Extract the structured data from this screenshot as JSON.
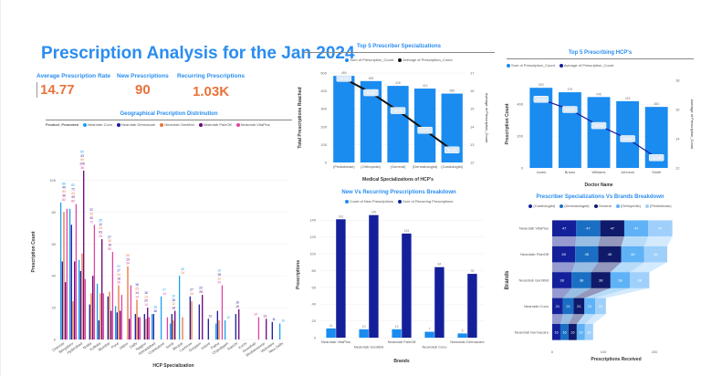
{
  "header": {
    "title": "Prescription Analysis for the Jan 2024"
  },
  "kpis": [
    {
      "label": "Average Prescription Rate",
      "value": "14.77"
    },
    {
      "label": "New Prescriptions",
      "value": "90"
    },
    {
      "label": "Recurring Prescriptions",
      "value": "1.03K"
    }
  ],
  "chart_data": [
    {
      "id": "geo",
      "type": "bar",
      "title": "Geographical Precription Distrinution",
      "legend_title": "Product_Promoted",
      "legend_position": "top-left",
      "xlabel": "HCP Specialization",
      "ylabel": "Prescription Count",
      "ylim": [
        0,
        110
      ],
      "yticks": [
        "0",
        "20",
        "40",
        "60",
        "80",
        "100"
      ],
      "categories": [
        "Chennai",
        "Bengaluru",
        "Hyderabad",
        "Noida",
        "Kolkata",
        "Mumbai",
        "Pune",
        "Jaipur",
        "Delhi",
        "Nagpur",
        "Ahmedabad",
        "Coimbatore",
        "Surat",
        "Bhopal",
        "Lucknow",
        "Gurgaon",
        "Indore",
        "Patna",
        "Chandigarh",
        "Ranchi",
        "Kochi",
        "Guwahati",
        "Bhubaneswar",
        "Vadodara",
        "New Delhi"
      ],
      "series": [
        {
          "name": "Nearotab Cuvo",
          "color": "#1aa0f0",
          "values": [
            86,
            82,
            50,
            null,
            35,
            null,
            21,
            null,
            null,
            null,
            16,
            27,
            10,
            40,
            null,
            null,
            null,
            10,
            12,
            null,
            null,
            null,
            null,
            null,
            10
          ]
        },
        {
          "name": "Nearotab Dermacare",
          "color": "#1a1a9a",
          "values": [
            49,
            72,
            43,
            22,
            12,
            27,
            17,
            null,
            16,
            16,
            16,
            null,
            16,
            null,
            27,
            22,
            13,
            18,
            null,
            16,
            null,
            null,
            null,
            11,
            null
          ]
        },
        {
          "name": "Nearotab Gentibid",
          "color": "#e8743b",
          "values": [
            80,
            24,
            54,
            29,
            29,
            30,
            34,
            46,
            25,
            13,
            null,
            null,
            12,
            14,
            24,
            null,
            null,
            12,
            null,
            null,
            null,
            null,
            null,
            null,
            null
          ]
        },
        {
          "name": "Nearotab PainOff",
          "color": "#6b007b",
          "values": [
            36,
            49,
            106,
            40,
            63,
            18,
            18,
            13,
            14,
            20,
            null,
            null,
            18,
            null,
            null,
            28,
            null,
            null,
            null,
            19,
            null,
            null,
            13,
            null,
            null
          ]
        },
        {
          "name": "Nearotab VitaPlus",
          "color": "#e044a7",
          "values": [
            82,
            85,
            38,
            72,
            29,
            55,
            28,
            34,
            14,
            14,
            null,
            14,
            null,
            null,
            null,
            null,
            null,
            34,
            null,
            null,
            null,
            14,
            null,
            null,
            null
          ]
        }
      ]
    },
    {
      "id": "spec",
      "type": "bar",
      "title": "Top 5 Prescriber Specializations",
      "xlabel": "Medical Specializations of HCP's",
      "ylabel": "Total Prescriptions Reached",
      "y2label": "Average of Prescription_Count",
      "ylim": [
        0,
        500
      ],
      "yticks": [
        "0",
        "100",
        "200",
        "300",
        "400",
        "500"
      ],
      "y2lim": [
        12,
        17
      ],
      "y2ticks": [
        "12",
        "13",
        "14",
        "15",
        "16",
        "17"
      ],
      "categories": [
        "(Pediatrician)",
        "(Orthopedic)",
        "(General)",
        "(Dermatologist)",
        "(Cardiologist)"
      ],
      "series": [
        {
          "name": "Sum of Prescription_Count",
          "color": "#1a8cf0",
          "values": [
            484,
            455,
            428,
            413,
            385
          ],
          "labels": [
            "484",
            "455",
            "428",
            "413",
            "385"
          ]
        },
        {
          "name": "Average of Prescription_Count",
          "color": "#111111",
          "type": "line",
          "values": [
            16.7,
            15.9,
            14.9,
            13.8,
            12.7
          ],
          "labels": [
            "16.68",
            "15.92",
            "14.92",
            "13.77",
            "12.67"
          ]
        }
      ]
    },
    {
      "id": "hcp",
      "type": "bar",
      "title": "Top 5 Prescribing HCP's",
      "xlabel": "Doctor Name",
      "ylabel": "Prescription Count",
      "y2label": "Average of Prescription_Count",
      "ylim": [
        0,
        550
      ],
      "yticks": [
        "0",
        "200",
        "400"
      ],
      "y2lim": [
        12,
        18
      ],
      "y2ticks": [
        "12",
        "14",
        "16",
        "18"
      ],
      "categories": [
        "Jones",
        "Brown",
        "Williams",
        "Johnson",
        "Smith"
      ],
      "series": [
        {
          "name": "Sum of Prescription_Count",
          "color": "#1a8cf0",
          "values": [
            503,
            475,
            445,
            419,
            383
          ],
          "labels": [
            "503",
            "475",
            "445",
            "419",
            "383"
          ]
        },
        {
          "name": "Average of Prescription_Count",
          "color": "#1a1a9a",
          "type": "line",
          "values": [
            16.7,
            16.0,
            14.9,
            14.0,
            12.7
          ],
          "labels": [
            "16.72",
            "16.02",
            "14.93",
            "13.97",
            "12.74"
          ]
        }
      ]
    },
    {
      "id": "newrec",
      "type": "bar",
      "title": "New Vs Recurring Prescriptions Breakdown",
      "xlabel": "Brands",
      "ylabel": "Prescriptions",
      "ylim": [
        0,
        150
      ],
      "yticks": [
        "0",
        "20",
        "40",
        "60",
        "80",
        "100",
        "120",
        "140"
      ],
      "categories": [
        "Nearotab VitaPlus",
        "Nearotab Gentibid",
        "Nearotab PainOff",
        "Nearotab Cuvo",
        "Nearotab Dermacare"
      ],
      "series": [
        {
          "name": "Count of New Prescriptions",
          "color": "#1a8cf0",
          "values": [
            11,
            10,
            10,
            7,
            5
          ],
          "labels": [
            "11",
            "10",
            "10",
            "7",
            "5"
          ]
        },
        {
          "name": "Sum of Recurring Prescriptions",
          "color": "#14209a",
          "values": [
            141,
            146,
            124,
            84,
            76
          ],
          "labels": [
            "141",
            "146",
            "124",
            "84",
            "76"
          ]
        }
      ]
    },
    {
      "id": "stack",
      "type": "bar",
      "orientation": "horizontal",
      "stacked": true,
      "title": "Prescriber Specializations Vs Brands Breakdown",
      "xlabel": "Prescriptions Received",
      "ylabel": "Brands",
      "xlim": [
        0,
        250
      ],
      "xticks": [
        "0",
        "100",
        "200"
      ],
      "categories": [
        "Nearotab VitaPlus",
        "Nearotab PainOff",
        "Nearotab Gentibid",
        "Nearotab Cuvo",
        "Nearotab Dermacare"
      ],
      "series": [
        {
          "name": "(Cardiologist)",
          "color": "#14209a",
          "values": [
            47,
            45,
            38,
            21,
            16
          ]
        },
        {
          "name": "(Dermatologist)",
          "color": "#1a6fc4",
          "values": [
            47,
            45,
            38,
            21,
            16
          ]
        },
        {
          "name": "General",
          "color": "#0f1a6b",
          "values": [
            47,
            45,
            38,
            21,
            16
          ]
        },
        {
          "name": "(Orthopedic)",
          "color": "#5fb2f5",
          "values": [
            47,
            45,
            38,
            21,
            16
          ]
        },
        {
          "name": "(Pediatrician)",
          "color": "#9fd0fb",
          "values": [
            47,
            45,
            38,
            21,
            16
          ]
        }
      ]
    }
  ]
}
